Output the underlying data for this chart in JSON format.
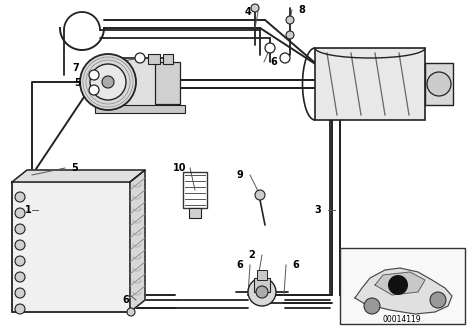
{
  "background_color": "#ffffff",
  "diagram_id": "00014119",
  "line_color": "#222222",
  "text_color": "#000000",
  "fig_w": 4.74,
  "fig_h": 3.34,
  "dpi": 100
}
